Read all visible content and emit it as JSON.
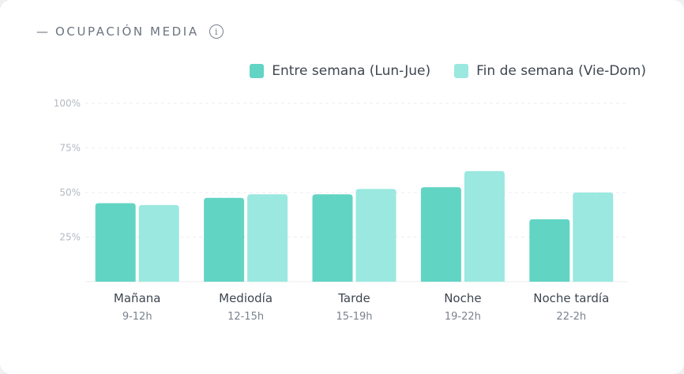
{
  "card": {
    "dash": "—",
    "title": "OCUPACIÓN MEDIA",
    "info_icon": "info-icon"
  },
  "colors": {
    "weekday": "#62d4c4",
    "weekend": "#9ae8df",
    "grid": "#eceef0",
    "axis_text": "#b3b9c0"
  },
  "chart_data": {
    "type": "bar",
    "title": "OCUPACIÓN MEDIA",
    "xlabel": "",
    "ylabel": "",
    "ylim": [
      0,
      100
    ],
    "yticks": [
      "100%",
      "75%",
      "50%",
      "25%"
    ],
    "ytick_values": [
      100,
      75,
      50,
      25
    ],
    "categories": [
      "Mañana",
      "Mediodía",
      "Tarde",
      "Noche",
      "Noche tardía"
    ],
    "subcategories": [
      "9-12h",
      "12-15h",
      "15-19h",
      "19-22h",
      "22-2h"
    ],
    "series": [
      {
        "name": "Entre semana (Lun-Jue)",
        "values": [
          44,
          47,
          49,
          53,
          35
        ]
      },
      {
        "name": "Fin de semana (Vie-Dom)",
        "values": [
          43,
          49,
          52,
          62,
          50
        ]
      }
    ],
    "grid": true,
    "legend_position": "top-right"
  }
}
